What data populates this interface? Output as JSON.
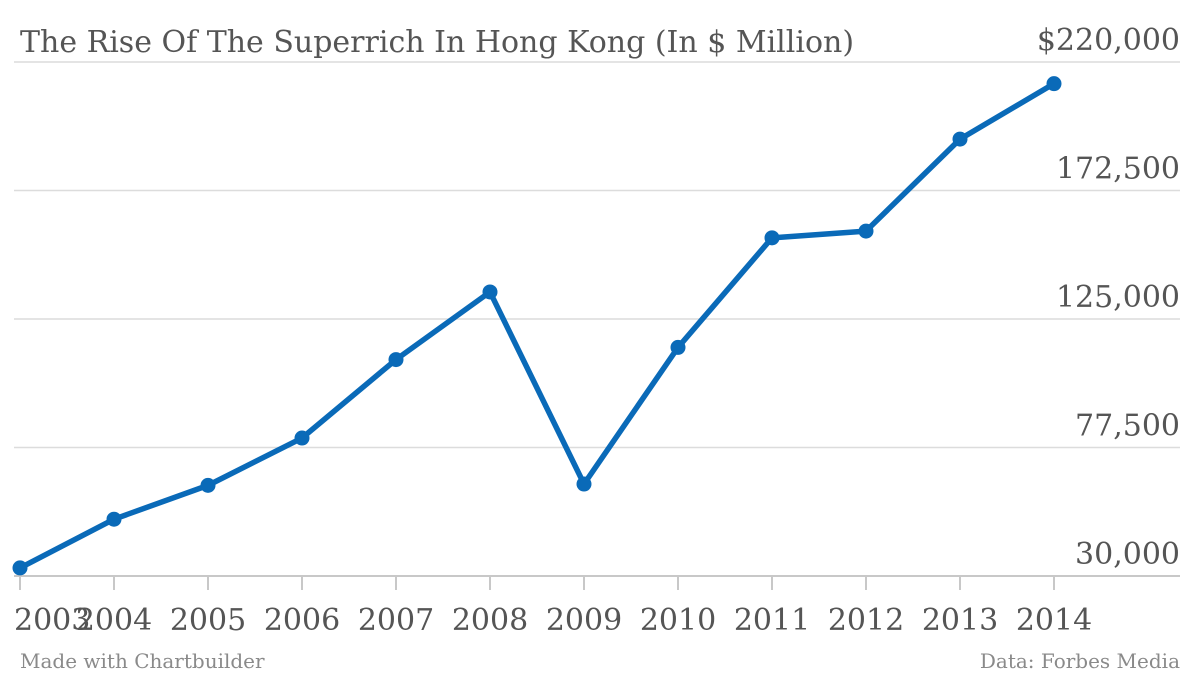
{
  "chart_data": {
    "type": "line",
    "title": "The Rise Of The Superrich In Hong Kong (In $ Million)",
    "x": [
      "2003",
      "2004",
      "2005",
      "2006",
      "2007",
      "2008",
      "2009",
      "2010",
      "2011",
      "2012",
      "2013",
      "2014"
    ],
    "series": [
      {
        "values": [
          33000,
          51000,
          63500,
          81000,
          110000,
          135000,
          64000,
          114500,
          155000,
          157500,
          191500,
          212000
        ],
        "color": "#0a6ab8"
      }
    ],
    "y_ticks": [
      30000,
      77500,
      125000,
      172500,
      220000
    ],
    "y_tick_labels": [
      "30,000",
      "77,500",
      "125,000",
      "172,500",
      "$220,000"
    ],
    "ylim": [
      30000,
      220000
    ],
    "grid": true,
    "xlabel": "",
    "ylabel": ""
  },
  "footer": {
    "credit": "Made with Chartbuilder",
    "source": "Data: Forbes Media"
  }
}
